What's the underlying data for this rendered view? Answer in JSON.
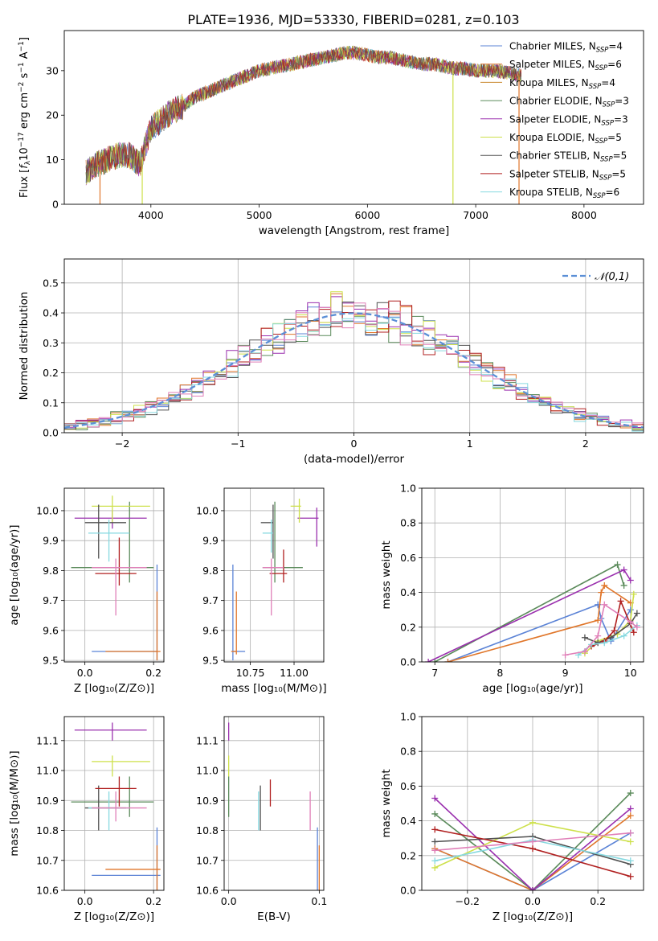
{
  "title": "PLATE=1936, MJD=53330, FIBERID=0281, z=0.103",
  "colors": {
    "Chabrier MILES": "#5b83d6",
    "Salpeter MILES": "#e0762a",
    "Kroupa MILES": "#c98a30",
    "Chabrier ELODIE": "#5a8a5a",
    "Salpeter ELODIE": "#9a2fae",
    "Kroupa ELODIE": "#cde04a",
    "Chabrier STELIB": "#505050",
    "Salpeter STELIB": "#b01f1f",
    "Kroupa STELIB": "#86d9e0",
    "pink": "#e07fb8",
    "normal_curve": "#5b8fd6"
  },
  "chart_data": [
    {
      "id": "spectrum",
      "type": "line",
      "xlabel": "wavelength [Angstrom, rest frame]",
      "ylabel": "Flux [f_λ 10^-17 erg cm^-2 s^-1 A^-1]",
      "xlim": [
        3200,
        8550
      ],
      "ylim": [
        0,
        39
      ],
      "xticks": [
        4000,
        5000,
        6000,
        7000,
        8000
      ],
      "yticks": [
        0,
        10,
        20,
        30
      ],
      "grid": false,
      "legend_position": "top-right",
      "legend": [
        "Chabrier MILES, N_SSP=4",
        "Salpeter MILES, N_SSP=6",
        "Kroupa MILES, N_SSP=4",
        "Chabrier ELODIE, N_SSP=3",
        "Salpeter ELODIE, N_SSP=3",
        "Kroupa ELODIE, N_SSP=5",
        "Chabrier STELIB, N_SSP=5",
        "Salpeter STELIB, N_SSP=5",
        "Kroupa STELIB, N_SSP=6"
      ],
      "continuum": {
        "x": [
          3400,
          3500,
          3600,
          3700,
          3800,
          3900,
          4000,
          4100,
          4200,
          4300,
          4400,
          4500,
          4600,
          4700,
          4800,
          4900,
          5000,
          5100,
          5200,
          5300,
          5400,
          5500,
          5600,
          5700,
          5800,
          5900,
          6000,
          6100,
          6200,
          6300,
          6400,
          6500,
          6600,
          6700,
          6800,
          6900,
          7000,
          7100,
          7200,
          7300,
          7400
        ],
        "y": [
          7,
          9,
          10,
          11,
          11,
          9,
          17,
          19,
          21,
          22,
          24,
          25,
          26,
          27,
          28,
          29,
          30,
          30.5,
          31,
          31.5,
          32,
          32.5,
          33,
          33.5,
          34,
          34,
          33.5,
          33,
          33,
          32.5,
          32,
          31.5,
          31.5,
          31,
          30.5,
          30.5,
          30,
          30,
          30,
          29.5,
          29
        ]
      },
      "dips": [
        {
          "x": 3530,
          "y": 0
        },
        {
          "x": 3920,
          "y": 0
        },
        {
          "x": 6790,
          "y": 0
        },
        {
          "x": 7400,
          "y": 0
        }
      ]
    },
    {
      "id": "residuals",
      "type": "histogram",
      "xlabel": "(data-model)/error",
      "ylabel": "Normed distribution",
      "xlim": [
        -2.5,
        2.5
      ],
      "ylim": [
        0,
        0.58
      ],
      "xticks": [
        -2,
        -1,
        0,
        1,
        2
      ],
      "yticks": [
        0.0,
        0.1,
        0.2,
        0.3,
        0.4,
        0.5
      ],
      "grid": true,
      "legend_position": "top-right",
      "legend": [
        "𝒩(0,1)"
      ],
      "bin_width": 0.1
    },
    {
      "id": "age_vs_Z",
      "type": "errorbar",
      "xlabel": "Z [log10(Z/Z⊙)]",
      "ylabel": "age [log10(age/yr)]",
      "xlim": [
        -0.06,
        0.23
      ],
      "ylim": [
        9.495,
        10.075
      ],
      "xticks": [
        0.0,
        0.2
      ],
      "yticks": [
        9.5,
        9.6,
        9.7,
        9.8,
        9.9,
        10.0
      ],
      "grid": true,
      "points": [
        {
          "c": "Chabrier MILES",
          "x": 0.21,
          "y": 9.53,
          "xlo": 0.02,
          "xhi": 0.21,
          "ylo": 9.5,
          "yhi": 9.82
        },
        {
          "c": "Salpeter MILES",
          "x": 0.21,
          "y": 9.53,
          "xlo": 0.06,
          "xhi": 0.22,
          "ylo": 9.5,
          "yhi": 9.73
        },
        {
          "c": "Chabrier ELODIE",
          "x": 0.13,
          "y": 9.81,
          "xlo": -0.04,
          "xhi": 0.2,
          "ylo": 9.76,
          "yhi": 10.03
        },
        {
          "c": "Salpeter ELODIE",
          "x": 0.08,
          "y": 9.975,
          "xlo": -0.03,
          "xhi": 0.18,
          "ylo": 9.94,
          "yhi": 10.0
        },
        {
          "c": "Kroupa ELODIE",
          "x": 0.08,
          "y": 10.015,
          "xlo": 0.02,
          "xhi": 0.19,
          "ylo": 9.96,
          "yhi": 10.05
        },
        {
          "c": "Chabrier STELIB",
          "x": 0.04,
          "y": 9.96,
          "xlo": 0.0,
          "xhi": 0.12,
          "ylo": 9.84,
          "yhi": 10.02
        },
        {
          "c": "Salpeter STELIB",
          "x": 0.1,
          "y": 9.79,
          "xlo": 0.03,
          "xhi": 0.15,
          "ylo": 9.75,
          "yhi": 9.91
        },
        {
          "c": "Kroupa STELIB",
          "x": 0.07,
          "y": 9.925,
          "xlo": 0.01,
          "xhi": 0.13,
          "ylo": 9.83,
          "yhi": 9.97
        },
        {
          "c": "pink",
          "x": 0.09,
          "y": 9.81,
          "xlo": 0.02,
          "xhi": 0.18,
          "ylo": 9.65,
          "yhi": 9.84
        }
      ]
    },
    {
      "id": "age_vs_mass",
      "type": "errorbar",
      "xlabel": "mass [log10(M/M⊙)]",
      "ylabel": "",
      "xlim": [
        10.6,
        11.17
      ],
      "ylim": [
        9.495,
        10.075
      ],
      "xticks": [
        10.75,
        11.0
      ],
      "yticks": [
        9.5,
        9.6,
        9.7,
        9.8,
        9.9,
        10.0
      ],
      "grid": true,
      "points": [
        {
          "c": "Chabrier MILES",
          "x": 10.65,
          "y": 9.53,
          "xlo": 10.65,
          "xhi": 10.72,
          "ylo": 9.5,
          "yhi": 9.82
        },
        {
          "c": "Salpeter MILES",
          "x": 10.67,
          "y": 9.53,
          "xlo": 10.64,
          "xhi": 10.67,
          "ylo": 9.52,
          "yhi": 9.73
        },
        {
          "c": "Chabrier ELODIE",
          "x": 10.89,
          "y": 9.81,
          "xlo": 10.82,
          "xhi": 11.05,
          "ylo": 9.76,
          "yhi": 10.03
        },
        {
          "c": "Salpeter ELODIE",
          "x": 11.13,
          "y": 9.975,
          "xlo": 11.02,
          "xhi": 11.14,
          "ylo": 9.88,
          "yhi": 10.01
        },
        {
          "c": "Kroupa ELODIE",
          "x": 11.03,
          "y": 10.015,
          "xlo": 10.98,
          "xhi": 11.04,
          "ylo": 9.96,
          "yhi": 10.04
        },
        {
          "c": "Chabrier STELIB",
          "x": 10.88,
          "y": 9.96,
          "xlo": 10.81,
          "xhi": 10.88,
          "ylo": 9.84,
          "yhi": 10.02
        },
        {
          "c": "Salpeter STELIB",
          "x": 10.94,
          "y": 9.79,
          "xlo": 10.86,
          "xhi": 10.96,
          "ylo": 9.76,
          "yhi": 9.87
        },
        {
          "c": "Kroupa STELIB",
          "x": 10.87,
          "y": 9.925,
          "xlo": 10.82,
          "xhi": 10.88,
          "ylo": 9.86,
          "yhi": 9.97
        },
        {
          "c": "pink",
          "x": 10.87,
          "y": 9.81,
          "xlo": 10.82,
          "xhi": 10.94,
          "ylo": 9.65,
          "yhi": 9.84
        }
      ]
    },
    {
      "id": "weight_vs_age",
      "type": "line",
      "xlabel": "age [log10(age/yr)]",
      "ylabel": "mass weight",
      "xlim": [
        6.8,
        10.2
      ],
      "ylim": [
        0,
        1.0
      ],
      "xticks": [
        7,
        8,
        9,
        10
      ],
      "yticks": [
        0.0,
        0.2,
        0.4,
        0.6,
        0.8,
        1.0
      ],
      "grid": true,
      "series": [
        {
          "c": "Chabrier MILES",
          "x": [
            7.2,
            9.5,
            9.55,
            9.7,
            10.0
          ],
          "y": [
            0.0,
            0.33,
            0.25,
            0.12,
            0.3
          ]
        },
        {
          "c": "Salpeter MILES",
          "x": [
            7.2,
            9.5,
            9.55,
            9.6,
            10.0
          ],
          "y": [
            0.0,
            0.24,
            0.4,
            0.44,
            0.34
          ]
        },
        {
          "c": "Chabrier ELODIE",
          "x": [
            7.0,
            9.8,
            9.9
          ],
          "y": [
            0.0,
            0.56,
            0.44
          ]
        },
        {
          "c": "Salpeter ELODIE",
          "x": [
            6.9,
            9.9,
            10.0
          ],
          "y": [
            0.0,
            0.53,
            0.47
          ]
        },
        {
          "c": "Kroupa ELODIE",
          "x": [
            9.3,
            9.5,
            9.8,
            10.0,
            10.05
          ],
          "y": [
            0.05,
            0.12,
            0.16,
            0.24,
            0.39
          ]
        },
        {
          "c": "Chabrier STELIB",
          "x": [
            9.3,
            9.5,
            9.7,
            10.0,
            10.1
          ],
          "y": [
            0.14,
            0.11,
            0.14,
            0.22,
            0.28
          ]
        },
        {
          "c": "Salpeter STELIB",
          "x": [
            9.4,
            9.6,
            9.75,
            9.85,
            10.05
          ],
          "y": [
            0.09,
            0.12,
            0.18,
            0.35,
            0.17
          ]
        },
        {
          "c": "Kroupa STELIB",
          "x": [
            9.2,
            9.4,
            9.6,
            9.9,
            10.1
          ],
          "y": [
            0.04,
            0.1,
            0.11,
            0.15,
            0.21
          ]
        },
        {
          "c": "pink",
          "x": [
            9.0,
            9.3,
            9.5,
            9.6,
            10.0,
            10.1
          ],
          "y": [
            0.04,
            0.06,
            0.15,
            0.33,
            0.23,
            0.2
          ]
        }
      ]
    },
    {
      "id": "mass_vs_Z",
      "type": "errorbar",
      "xlabel": "Z [log10(Z/Z⊙)]",
      "ylabel": "mass [log10(M/M⊙)]",
      "xlim": [
        -0.06,
        0.23
      ],
      "ylim": [
        10.6,
        11.18
      ],
      "xticks": [
        0.0,
        0.2
      ],
      "yticks": [
        10.6,
        10.7,
        10.8,
        10.9,
        11.0,
        11.1
      ],
      "grid": true,
      "points": [
        {
          "c": "Chabrier MILES",
          "x": 0.21,
          "y": 10.65,
          "xlo": 0.02,
          "xhi": 0.22,
          "ylo": 10.6,
          "yhi": 10.81
        },
        {
          "c": "Salpeter MILES",
          "x": 0.21,
          "y": 10.67,
          "xlo": 0.06,
          "xhi": 0.22,
          "ylo": 10.6,
          "yhi": 10.75
        },
        {
          "c": "Chabrier ELODIE",
          "x": 0.13,
          "y": 10.895,
          "xlo": -0.04,
          "xhi": 0.2,
          "ylo": 10.845,
          "yhi": 10.98
        },
        {
          "c": "Salpeter ELODIE",
          "x": 0.08,
          "y": 11.135,
          "xlo": -0.03,
          "xhi": 0.18,
          "ylo": 11.1,
          "yhi": 11.16
        },
        {
          "c": "Kroupa ELODIE",
          "x": 0.08,
          "y": 11.03,
          "xlo": 0.02,
          "xhi": 0.19,
          "ylo": 10.98,
          "yhi": 11.05
        },
        {
          "c": "Chabrier STELIB",
          "x": 0.04,
          "y": 10.875,
          "xlo": 0.0,
          "xhi": 0.12,
          "ylo": 10.8,
          "yhi": 10.95
        },
        {
          "c": "Salpeter STELIB",
          "x": 0.1,
          "y": 10.94,
          "xlo": 0.03,
          "xhi": 0.15,
          "ylo": 10.88,
          "yhi": 10.98
        },
        {
          "c": "Kroupa STELIB",
          "x": 0.07,
          "y": 10.875,
          "xlo": 0.01,
          "xhi": 0.13,
          "ylo": 10.8,
          "yhi": 10.93
        },
        {
          "c": "pink",
          "x": 0.09,
          "y": 10.875,
          "xlo": 0.02,
          "xhi": 0.18,
          "ylo": 10.83,
          "yhi": 10.93
        }
      ]
    },
    {
      "id": "mass_vs_ebv",
      "type": "errorbar",
      "xlabel": "E(B-V)",
      "ylabel": "",
      "xlim": [
        -0.005,
        0.105
      ],
      "ylim": [
        10.6,
        11.18
      ],
      "xticks": [
        0.0,
        0.1
      ],
      "yticks": [
        10.6,
        10.7,
        10.8,
        10.9,
        11.0,
        11.1
      ],
      "grid": true,
      "points": [
        {
          "c": "Chabrier MILES",
          "x": 0.098,
          "y": 10.65,
          "ylo": 10.6,
          "yhi": 10.81
        },
        {
          "c": "Salpeter MILES",
          "x": 0.1,
          "y": 10.67,
          "ylo": 10.6,
          "yhi": 10.75
        },
        {
          "c": "Chabrier ELODIE",
          "x": 0.0,
          "y": 10.895,
          "ylo": 10.845,
          "yhi": 10.98
        },
        {
          "c": "Salpeter ELODIE",
          "x": 0.0,
          "y": 11.135,
          "ylo": 11.1,
          "yhi": 11.16
        },
        {
          "c": "Kroupa ELODIE",
          "x": 0.0,
          "y": 11.03,
          "ylo": 10.98,
          "yhi": 11.05
        },
        {
          "c": "Chabrier STELIB",
          "x": 0.035,
          "y": 10.875,
          "ylo": 10.8,
          "yhi": 10.95
        },
        {
          "c": "Salpeter STELIB",
          "x": 0.046,
          "y": 10.92,
          "ylo": 10.88,
          "yhi": 10.97
        },
        {
          "c": "Kroupa STELIB",
          "x": 0.033,
          "y": 10.875,
          "ylo": 10.8,
          "yhi": 10.93
        },
        {
          "c": "pink",
          "x": 0.09,
          "y": 10.88,
          "ylo": 10.8,
          "yhi": 10.93
        }
      ]
    },
    {
      "id": "weight_vs_Z",
      "type": "line",
      "xlabel": "Z [log10(Z/Z⊙)]",
      "ylabel": "mass weight",
      "xlim": [
        -0.34,
        0.34
      ],
      "ylim": [
        0,
        1.0
      ],
      "xticks": [
        -0.2,
        0.0,
        0.2
      ],
      "yticks": [
        0.0,
        0.2,
        0.4,
        0.6,
        0.8,
        1.0
      ],
      "grid": true,
      "series": [
        {
          "c": "Chabrier MILES",
          "x": [
            -0.3,
            0.0,
            0.3
          ],
          "y": [
            0.24,
            0.0,
            0.33
          ]
        },
        {
          "c": "Salpeter MILES",
          "x": [
            -0.3,
            0.0,
            0.3
          ],
          "y": [
            0.24,
            0.0,
            0.43
          ]
        },
        {
          "c": "Chabrier ELODIE",
          "x": [
            -0.3,
            0.0,
            0.3
          ],
          "y": [
            0.44,
            0.0,
            0.56
          ]
        },
        {
          "c": "Salpeter ELODIE",
          "x": [
            -0.3,
            0.0,
            0.3
          ],
          "y": [
            0.53,
            0.0,
            0.47
          ]
        },
        {
          "c": "Kroupa ELODIE",
          "x": [
            -0.3,
            0.0,
            0.3
          ],
          "y": [
            0.13,
            0.39,
            0.28
          ]
        },
        {
          "c": "Chabrier STELIB",
          "x": [
            -0.3,
            0.0,
            0.3
          ],
          "y": [
            0.28,
            0.31,
            0.15
          ]
        },
        {
          "c": "Salpeter STELIB",
          "x": [
            -0.3,
            0.0,
            0.3
          ],
          "y": [
            0.35,
            0.24,
            0.08
          ]
        },
        {
          "c": "Kroupa STELIB",
          "x": [
            -0.3,
            0.0,
            0.3
          ],
          "y": [
            0.17,
            0.29,
            0.17
          ]
        },
        {
          "c": "pink",
          "x": [
            -0.3,
            0.0,
            0.3
          ],
          "y": [
            0.23,
            0.28,
            0.33
          ]
        }
      ]
    }
  ]
}
